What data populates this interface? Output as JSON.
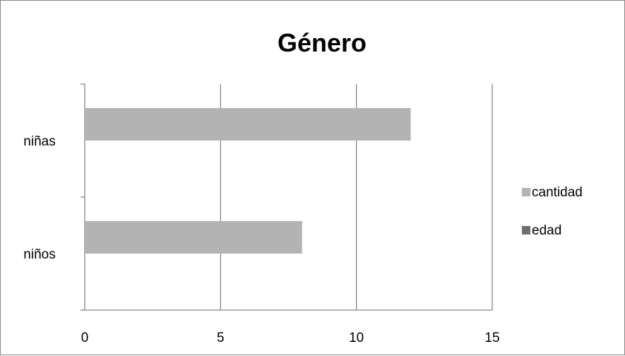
{
  "chart_data": {
    "type": "bar",
    "orientation": "horizontal",
    "title": "Género",
    "categories": [
      "niños",
      "niñas"
    ],
    "series": [
      {
        "name": "cantidad",
        "values": [
          8,
          12
        ],
        "color": "#b3b3b3"
      },
      {
        "name": "edad",
        "values": [
          null,
          null
        ],
        "color": "#6e6e6e"
      }
    ],
    "xlim": [
      0,
      15
    ],
    "x_ticks": [
      "0",
      "5",
      "10",
      "15"
    ],
    "grid": "vertical",
    "legend_position": "right"
  }
}
